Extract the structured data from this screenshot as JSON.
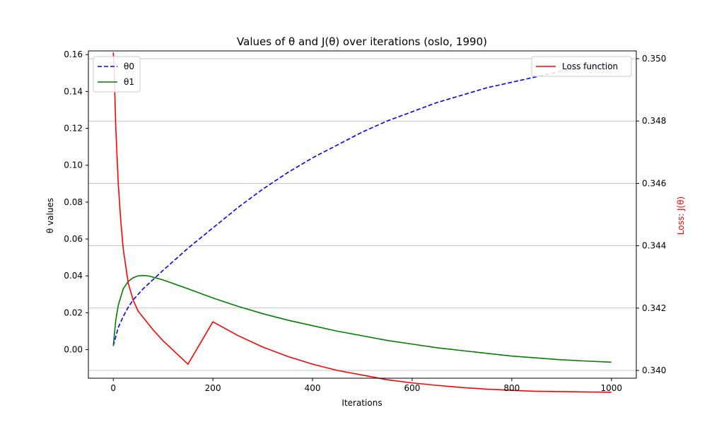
{
  "chart_data": {
    "type": "line",
    "title": "Values of θ and J(θ) over iterations (oslo, 1990)",
    "xlabel": "Iterations",
    "ylabel_left": "θ values",
    "ylabel_right": "Loss: J(θ)",
    "xlim": [
      -50,
      1050
    ],
    "ylim_left": [
      -0.0155,
      0.162
    ],
    "ylim_right": [
      0.33975,
      0.35025
    ],
    "x_ticks": [
      "0",
      "200",
      "400",
      "600",
      "800",
      "1000"
    ],
    "y_left_ticks": [
      "0.00",
      "0.02",
      "0.04",
      "0.06",
      "0.08",
      "0.10",
      "0.12",
      "0.14",
      "0.16"
    ],
    "y_right_ticks": [
      "0.340",
      "0.342",
      "0.344",
      "0.346",
      "0.348",
      "0.350"
    ],
    "grid": "horizontal lines at right-axis ticks",
    "legend_left": {
      "placement": "top-left",
      "entries": [
        "θ0",
        "θ1"
      ]
    },
    "legend_right": {
      "placement": "top-right",
      "entries": [
        "Loss function"
      ]
    },
    "series": [
      {
        "name": "θ0",
        "axis": "left",
        "style": "dashed",
        "color": "#0000ff",
        "x": [
          0,
          10,
          20,
          30,
          40,
          60,
          80,
          100,
          150,
          200,
          250,
          300,
          350,
          400,
          450,
          500,
          550,
          600,
          650,
          700,
          750,
          800,
          850,
          900,
          950,
          1000
        ],
        "y": [
          0.002,
          0.012,
          0.018,
          0.023,
          0.027,
          0.033,
          0.038,
          0.043,
          0.055,
          0.066,
          0.077,
          0.087,
          0.096,
          0.104,
          0.111,
          0.118,
          0.124,
          0.129,
          0.134,
          0.138,
          0.142,
          0.145,
          0.148,
          0.151,
          0.153,
          0.155
        ]
      },
      {
        "name": "θ1",
        "axis": "left",
        "style": "solid",
        "color": "#008000",
        "x": [
          0,
          5,
          10,
          20,
          30,
          40,
          50,
          60,
          70,
          80,
          100,
          150,
          200,
          250,
          300,
          350,
          400,
          450,
          500,
          550,
          600,
          650,
          700,
          750,
          800,
          850,
          900,
          950,
          1000
        ],
        "y": [
          0.002,
          0.016,
          0.024,
          0.033,
          0.037,
          0.039,
          0.04,
          0.0402,
          0.04,
          0.0393,
          0.0378,
          0.033,
          0.028,
          0.0235,
          0.0195,
          0.016,
          0.013,
          0.01,
          0.0075,
          0.005,
          0.003,
          0.001,
          -0.0005,
          -0.002,
          -0.0035,
          -0.0045,
          -0.0055,
          -0.0062,
          -0.0068
        ]
      },
      {
        "name": "Loss function",
        "axis": "right",
        "style": "solid",
        "color": "#ff0000",
        "x": [
          0,
          2,
          5,
          10,
          15,
          20,
          30,
          40,
          50,
          60,
          80,
          100,
          150,
          200,
          250,
          300,
          350,
          400,
          450,
          500,
          550,
          600,
          650,
          700,
          750,
          800,
          850,
          900,
          950,
          1000
        ],
        "y": [
          0.3502,
          0.3495,
          0.3478,
          0.346,
          0.3448,
          0.3439,
          0.3428,
          0.34225,
          0.3419,
          0.3417,
          0.3413,
          0.34095,
          0.3402,
          0.34156,
          0.34112,
          0.34075,
          0.34045,
          0.3402,
          0.34,
          0.33985,
          0.3397,
          0.3396,
          0.33952,
          0.33945,
          0.3394,
          0.33936,
          0.33933,
          0.33932,
          0.33931,
          0.3393
        ]
      }
    ]
  }
}
